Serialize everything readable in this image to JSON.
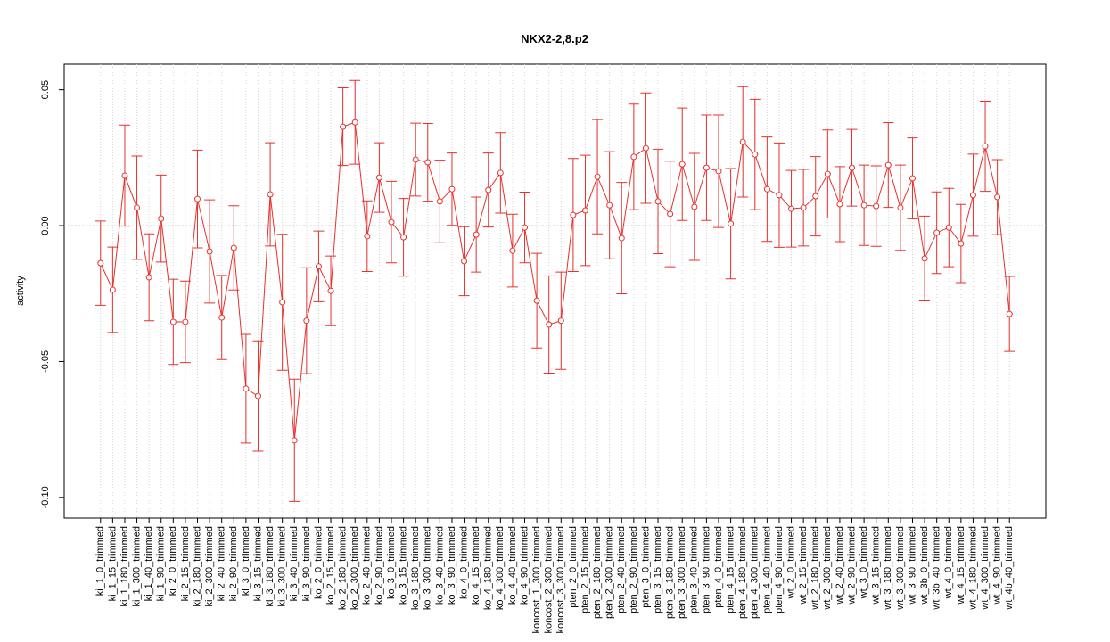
{
  "chart_data": {
    "type": "errorbar-line",
    "title": "NKX2-2,8.p2",
    "ylabel": "activity",
    "categories": [
      "ki_1_0_trimmed",
      "ki_1_15_trimmed",
      "ki_1_180_trimmed",
      "ki_1_300_trimmed",
      "ki_1_40_trimmed",
      "ki_1_90_trimmed",
      "ki_2_0_trimmed",
      "ki_2_15_trimmed",
      "ki_2_180_trimmed",
      "ki_2_300_trimmed",
      "ki_2_40_trimmed",
      "ki_2_90_trimmed",
      "ki_3_0_trimmed",
      "ki_3_15_trimmed",
      "ki_3_180_trimmed",
      "ki_3_300_trimmed",
      "ki_3_40_trimmed",
      "ki_3_90_trimmed",
      "ko_2_0_trimmed",
      "ko_2_15_trimmed",
      "ko_2_180_trimmed",
      "ko_2_300_trimmed",
      "ko_2_40_trimmed",
      "ko_2_90_trimmed",
      "ko_3_0_trimmed",
      "ko_3_15_trimmed",
      "ko_3_180_trimmed",
      "ko_3_300_trimmed",
      "ko_3_40_trimmed",
      "ko_3_90_trimmed",
      "ko_4_0_trimmed",
      "ko_4_15_trimmed",
      "ko_4_180_trimmed",
      "ko_4_300_trimmed",
      "ko_4_40_trimmed",
      "ko_4_90_trimmed",
      "koncost_1_300_trimmed",
      "koncost_2_300_trimmed",
      "koncost_3_300_trimmed",
      "pten_2_0_trimmed",
      "pten_2_15_trimmed",
      "pten_2_180_trimmed",
      "pten_2_300_trimmed",
      "pten_2_40_trimmed",
      "pten_2_90_trimmed",
      "pten_3_0_trimmed",
      "pten_3_15_trimmed",
      "pten_3_180_trimmed",
      "pten_3_300_trimmed",
      "pten_3_40_trimmed",
      "pten_3_90_trimmed",
      "pten_4_0_trimmed",
      "pten_4_15_trimmed",
      "pten_4_180_trimmed",
      "pten_4_300_trimmed",
      "pten_4_40_trimmed",
      "pten_4_90_trimmed",
      "wt_2_0_trimmed",
      "wt_2_15_trimmed",
      "wt_2_180_trimmed",
      "wt_2_300_trimmed",
      "wt_2_40_trimmed",
      "wt_2_90_trimmed",
      "wt_3_0_trimmed",
      "wt_3_15_trimmed",
      "wt_3_180_trimmed",
      "wt_3_300_trimmed",
      "wt_3_90_trimmed",
      "wt_3b_0_trimmed",
      "wt_3b_40_trimmed",
      "wt_4_0_trimmed",
      "wt_4_15_trimmed",
      "wt_4_180_trimmed",
      "wt_4_300_trimmed",
      "wt_4_90_trimmed",
      "wt_4b_40_trimmed"
    ],
    "series": [
      {
        "color": "#e8302c",
        "values": [
          -0.0138,
          -0.0236,
          0.0184,
          0.0066,
          -0.019,
          0.0026,
          -0.0354,
          -0.0354,
          0.0098,
          -0.0095,
          -0.0338,
          -0.0082,
          -0.06,
          -0.0627,
          0.0115,
          -0.0282,
          -0.079,
          -0.035,
          -0.015,
          -0.024,
          0.0364,
          0.038,
          -0.0039,
          0.0177,
          0.0013,
          -0.0043,
          0.0243,
          0.0233,
          0.0089,
          0.0134,
          -0.0131,
          -0.0033,
          0.0131,
          0.0194,
          -0.0092,
          -0.0007,
          -0.0276,
          -0.0364,
          -0.035,
          0.0039,
          0.0056,
          0.018,
          0.0075,
          -0.0046,
          0.0253,
          0.0285,
          0.0089,
          0.0043,
          0.0226,
          0.0069,
          0.0213,
          0.02,
          0.0007,
          0.0308,
          0.0262,
          0.0134,
          0.0112,
          0.0062,
          0.0066,
          0.0108,
          0.019,
          0.0079,
          0.0213,
          0.0075,
          0.0072,
          0.0223,
          0.0066,
          0.0174,
          -0.0121,
          -0.0026,
          -0.0007,
          -0.0066,
          0.0112,
          0.0292,
          0.0105,
          -0.0325
        ],
        "errors": [
          0.0155,
          0.0157,
          0.0186,
          0.019,
          0.016,
          0.016,
          0.0157,
          0.015,
          0.018,
          0.019,
          0.0155,
          0.0155,
          0.02,
          0.0203,
          0.019,
          0.025,
          0.0225,
          0.0195,
          0.013,
          0.0128,
          0.0143,
          0.0154,
          0.013,
          0.0128,
          0.015,
          0.0143,
          0.0134,
          0.0143,
          0.0152,
          0.0133,
          0.0127,
          0.0138,
          0.0136,
          0.0148,
          0.0134,
          0.013,
          0.0174,
          0.0179,
          0.0179,
          0.0208,
          0.0203,
          0.021,
          0.0197,
          0.0205,
          0.0194,
          0.0203,
          0.0192,
          0.0194,
          0.0207,
          0.0197,
          0.0194,
          0.0207,
          0.0203,
          0.0203,
          0.0203,
          0.0192,
          0.0192,
          0.0141,
          0.0141,
          0.0146,
          0.0162,
          0.0138,
          0.0141,
          0.0148,
          0.0148,
          0.0156,
          0.0157,
          0.0149,
          0.0156,
          0.015,
          0.0144,
          0.0144,
          0.0151,
          0.0166,
          0.0138,
          0.0138
        ]
      }
    ],
    "ylim": [
      -0.1076,
      0.0594
    ],
    "yticks": [
      {
        "value": -0.1,
        "label": "-0.10"
      },
      -0.05,
      {
        "value": 0,
        "label": "0.00"
      },
      0.05
    ],
    "reference_line": 0,
    "grid": true
  }
}
